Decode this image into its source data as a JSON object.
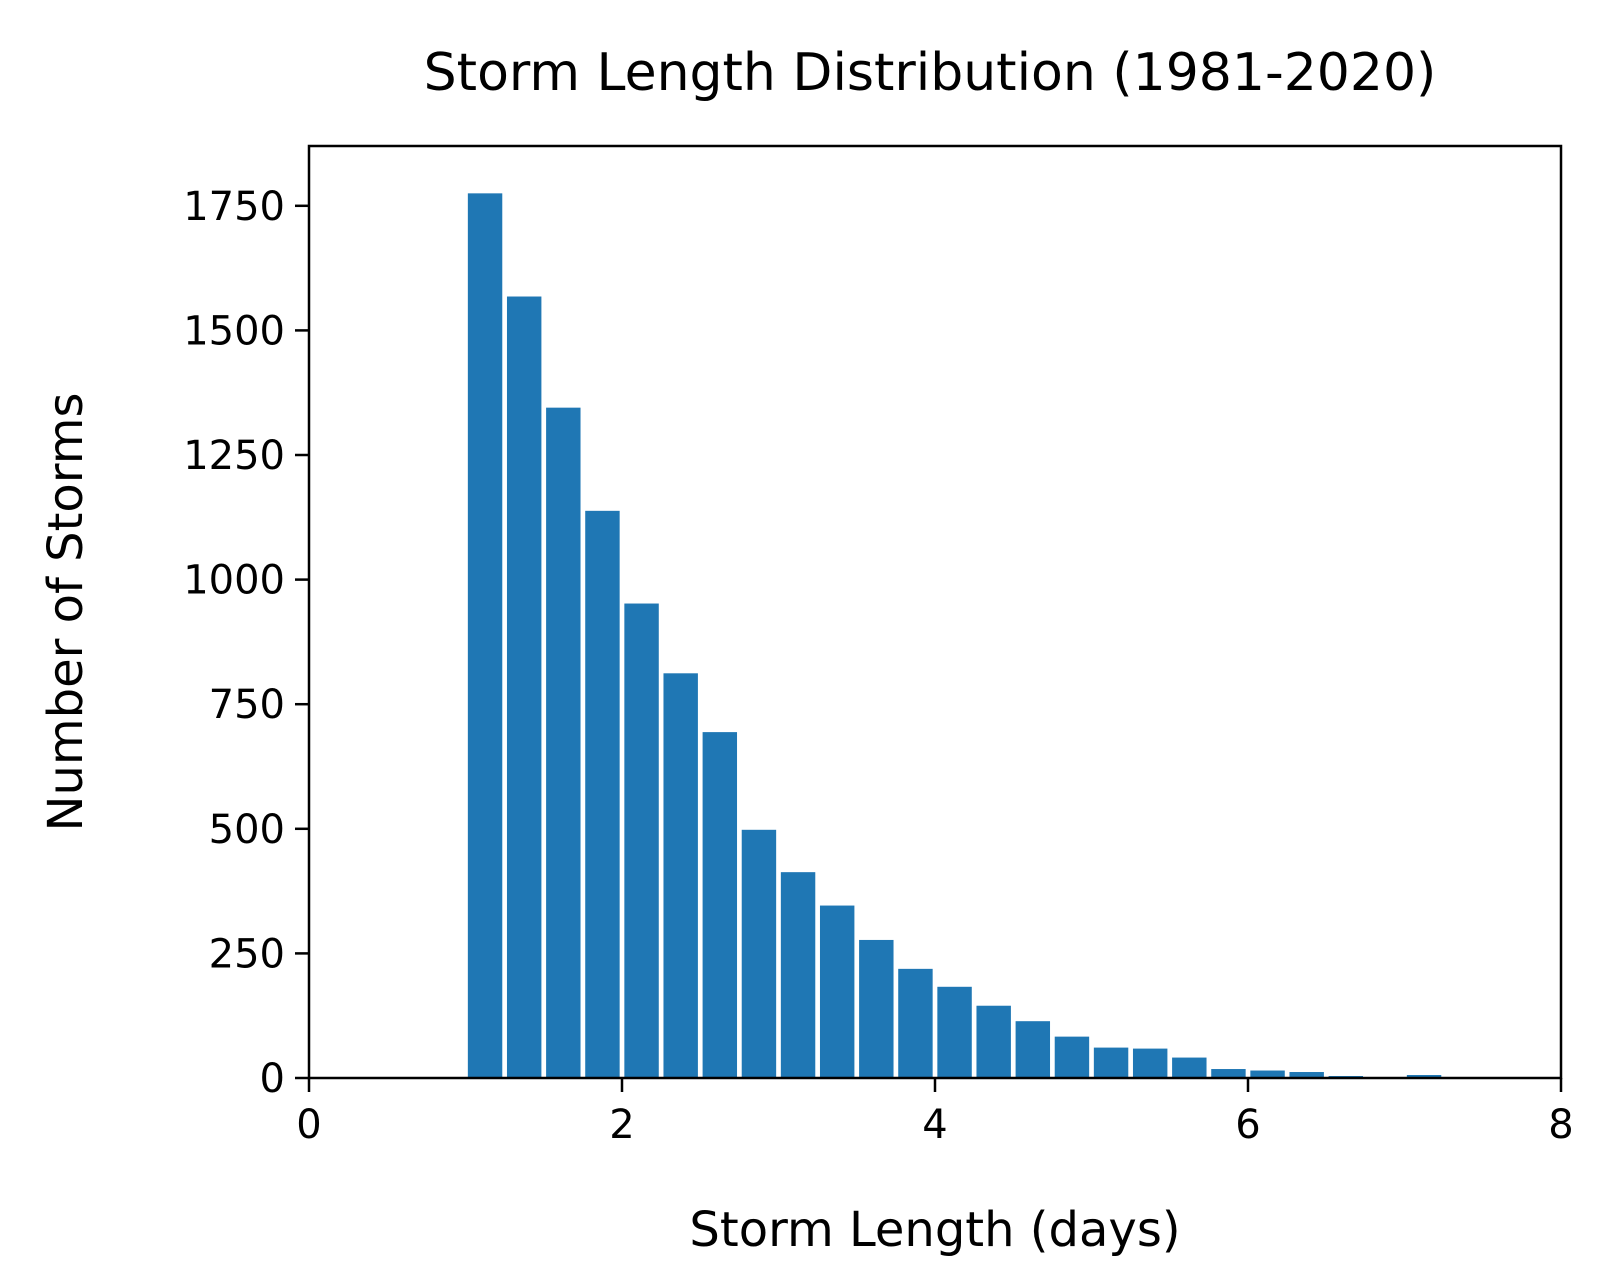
{
  "chart_data": {
    "type": "bar",
    "title": "Storm Length Distribution (1981-2020)",
    "xlabel": "Storm Length (days)",
    "ylabel": "Number of Storms",
    "xlim": [
      0,
      8
    ],
    "ylim": [
      0,
      1870
    ],
    "xticks": [
      0,
      2,
      4,
      6,
      8
    ],
    "xtick_labels": [
      "0",
      "2",
      "4",
      "6",
      "8"
    ],
    "yticks": [
      0,
      250,
      500,
      750,
      1000,
      1250,
      1500,
      1750
    ],
    "ytick_labels": [
      "0",
      "250",
      "500",
      "750",
      "1000",
      "1250",
      "1500",
      "1750"
    ],
    "bar_width_days": 0.22,
    "bar_color": "#1f77b4",
    "grid": false,
    "x": [
      1.125,
      1.375,
      1.625,
      1.875,
      2.125,
      2.375,
      2.625,
      2.875,
      3.125,
      3.375,
      3.625,
      3.875,
      4.125,
      4.375,
      4.625,
      4.875,
      5.125,
      5.375,
      5.625,
      5.875,
      6.125,
      6.375,
      6.625,
      6.875,
      7.125
    ],
    "values": [
      1775,
      1568,
      1345,
      1138,
      952,
      812,
      694,
      498,
      413,
      346,
      277,
      219,
      183,
      145,
      114,
      83,
      61,
      59,
      41,
      18,
      15,
      12,
      4,
      0,
      6
    ]
  }
}
